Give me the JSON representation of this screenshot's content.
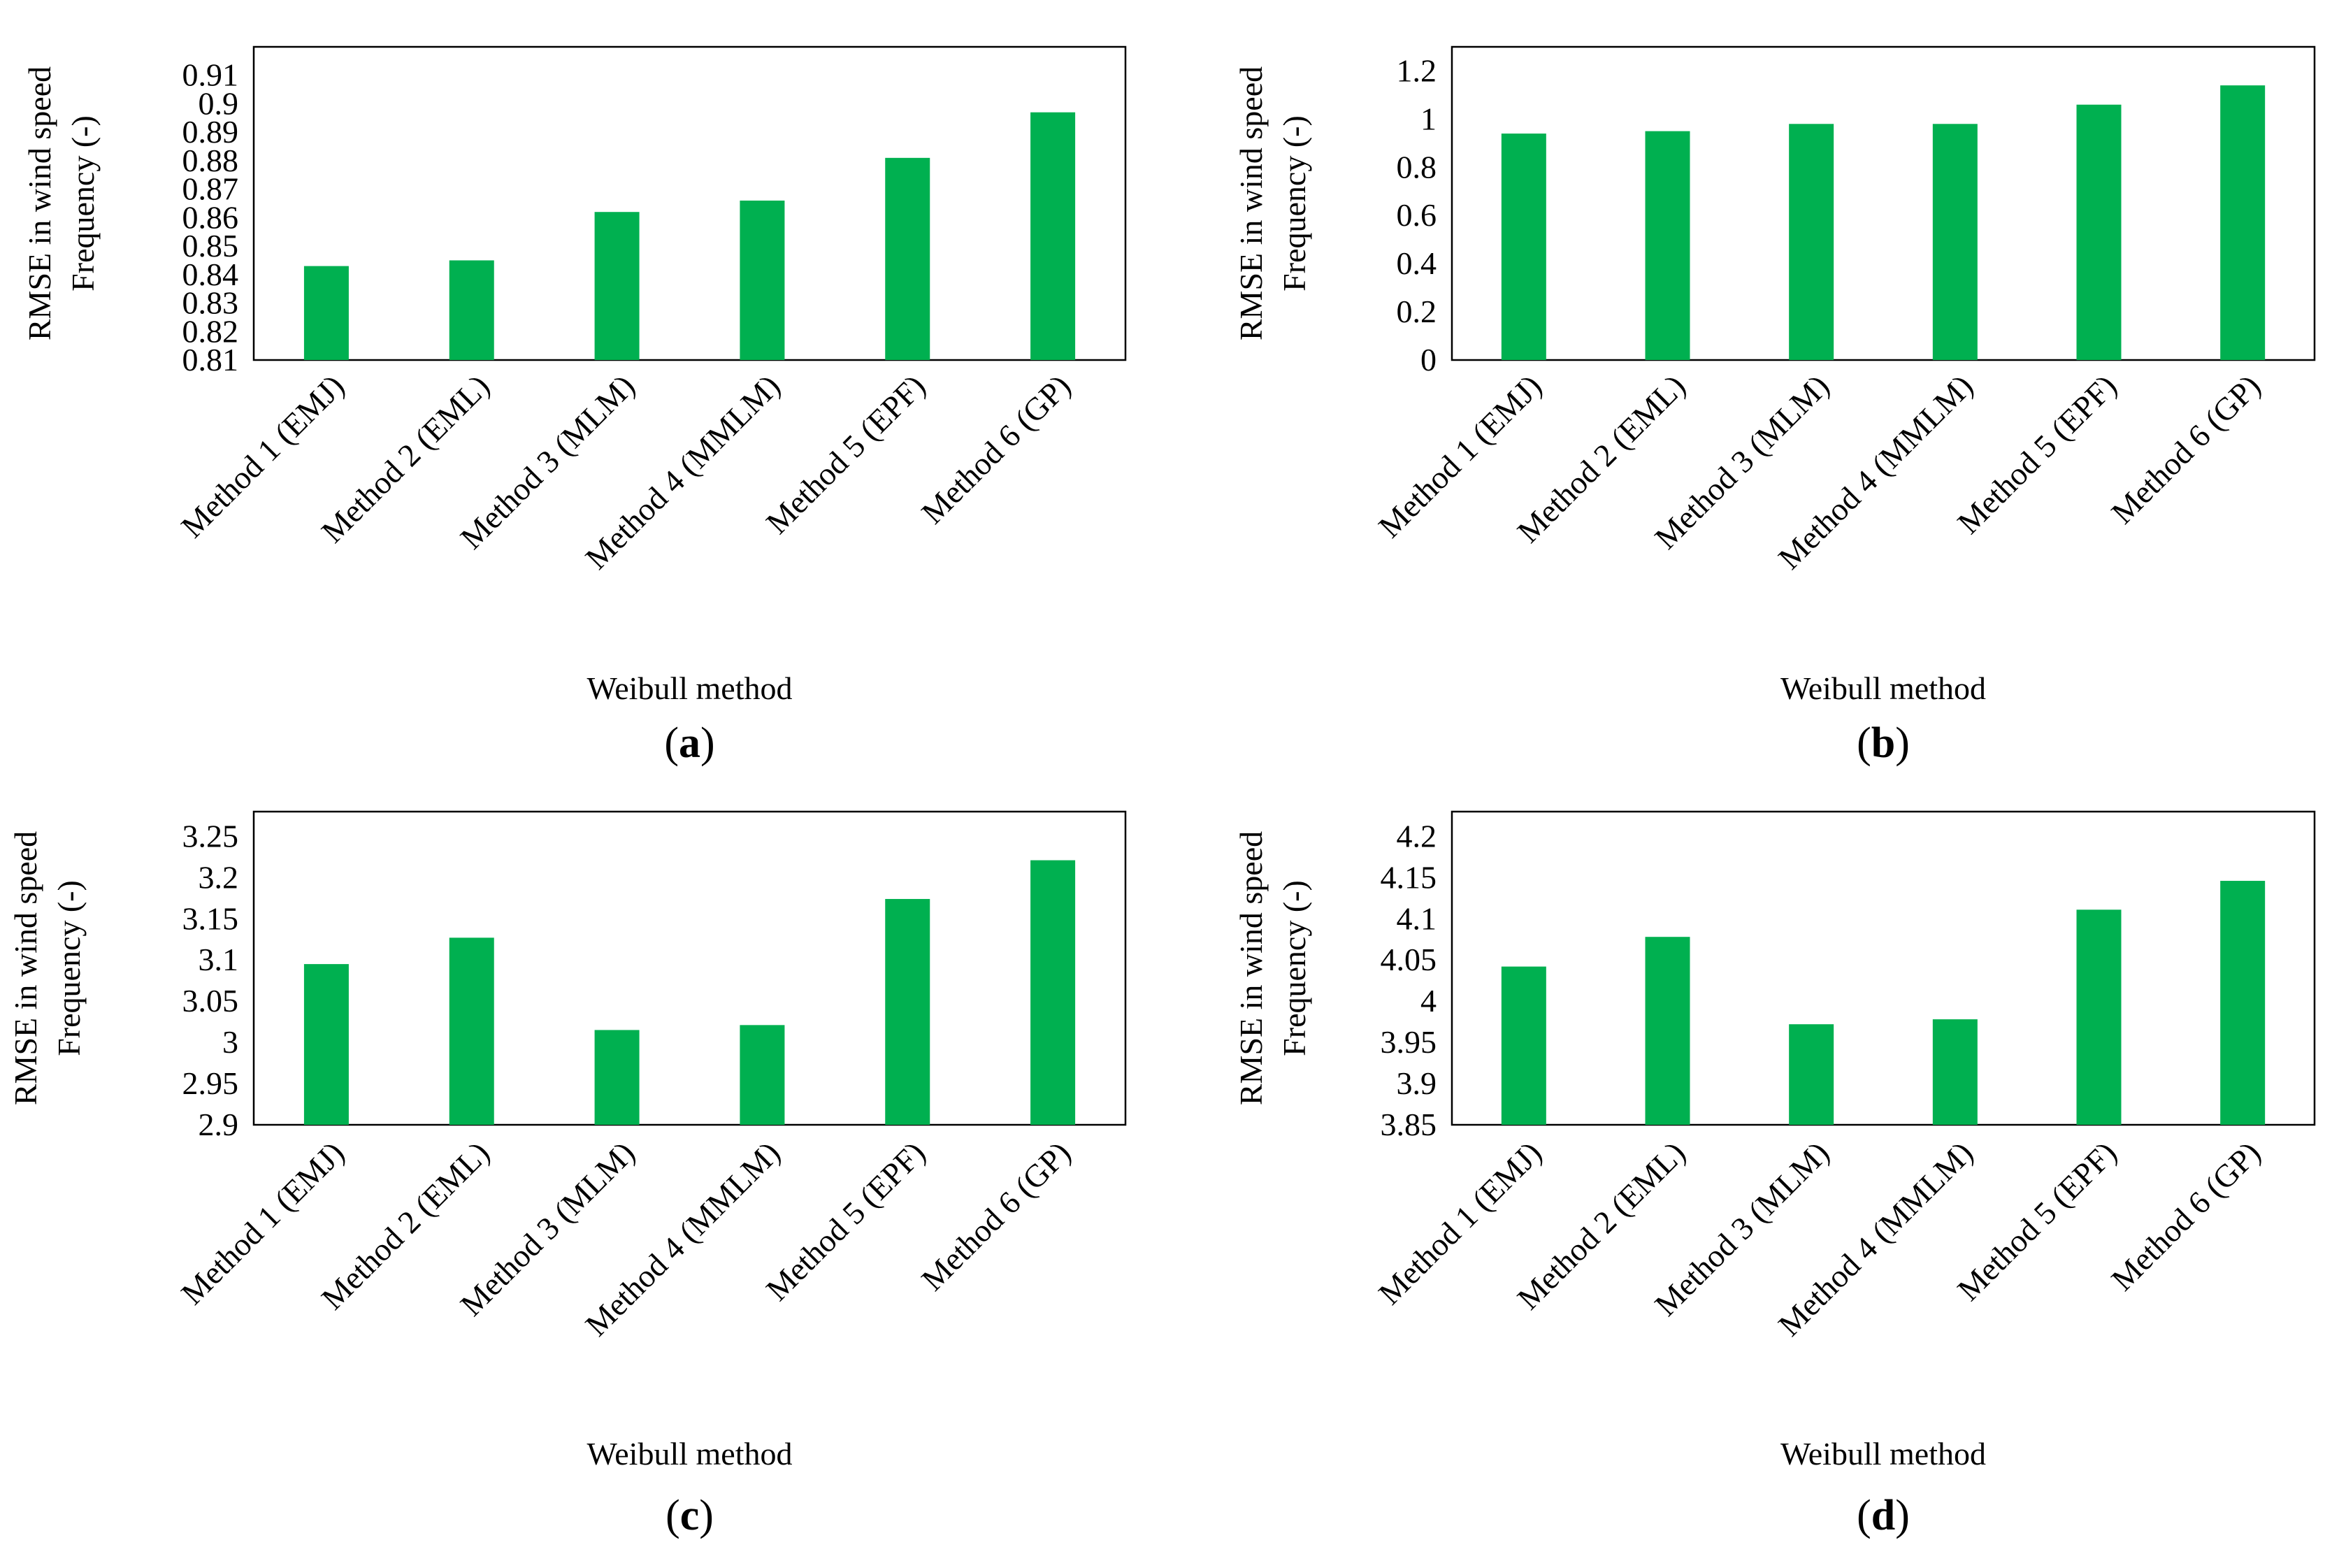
{
  "figure": {
    "bar_color": "#00b050"
  },
  "chart_data": [
    {
      "type": "bar",
      "panel_label": "(a)",
      "panel_letter": "a",
      "categories": [
        "Method 1 (EMJ)",
        "Method 2 (EML)",
        "Method 3 (MLM)",
        "Method 4 (MMLM)",
        "Method 5 (EPF)",
        "Method 6 (GP)"
      ],
      "values": [
        0.843,
        0.845,
        0.862,
        0.866,
        0.881,
        0.897
      ],
      "xlabel": "Weibull method",
      "ylabel_lines": [
        "RMSE in wind speed",
        "Frequency (-)"
      ],
      "ylim": [
        0.81,
        0.92
      ],
      "yticks": [
        0.81,
        0.82,
        0.83,
        0.84,
        0.85,
        0.86,
        0.87,
        0.88,
        0.89,
        0.9,
        0.91
      ],
      "ytick_labels": [
        "0.81",
        "0.82",
        "0.83",
        "0.84",
        "0.85",
        "0.86",
        "0.87",
        "0.88",
        "0.89",
        "0.9",
        "0.91"
      ],
      "grid": false
    },
    {
      "type": "bar",
      "panel_label": "(b)",
      "panel_letter": "b",
      "categories": [
        "Method 1 (EMJ)",
        "Method 2 (EML)",
        "Method 3 (MLM)",
        "Method 4 (MMLM)",
        "Method 5 (EPF)",
        "Method 6 (GP)"
      ],
      "values": [
        0.94,
        0.95,
        0.98,
        0.98,
        1.06,
        1.14
      ],
      "xlabel": "Weibull method",
      "ylabel_lines": [
        "RMSE in wind speed",
        "Frequency (-)"
      ],
      "ylim": [
        0,
        1.3
      ],
      "yticks": [
        0,
        0.2,
        0.4,
        0.6,
        0.8,
        1,
        1.2
      ],
      "ytick_labels": [
        "0",
        "0.2",
        "0.4",
        "0.6",
        "0.8",
        "1",
        "1.2"
      ],
      "grid": false
    },
    {
      "type": "bar",
      "panel_label": "(c)",
      "panel_letter": "c",
      "categories": [
        "Method 1 (EMJ)",
        "Method 2 (EML)",
        "Method 3 (MLM)",
        "Method 4 (MMLM)",
        "Method 5 (EPF)",
        "Method 6 (GP)"
      ],
      "values": [
        3.095,
        3.127,
        3.015,
        3.021,
        3.174,
        3.221
      ],
      "xlabel": "Weibull method",
      "ylabel_lines": [
        "RMSE in wind speed",
        "Frequency (-)"
      ],
      "ylim": [
        2.9,
        3.28
      ],
      "yticks": [
        2.9,
        2.95,
        3,
        3.05,
        3.1,
        3.15,
        3.2,
        3.25
      ],
      "ytick_labels": [
        "2.9",
        "2.95",
        "3",
        "3.05",
        "3.1",
        "3.15",
        "3.2",
        "3.25"
      ],
      "grid": false
    },
    {
      "type": "bar",
      "panel_label": "(d)",
      "panel_letter": "d",
      "categories": [
        "Method 1 (EMJ)",
        "Method 2 (EML)",
        "Method 3 (MLM)",
        "Method 4 (MMLM)",
        "Method 5 (EPF)",
        "Method 6 (GP)"
      ],
      "values": [
        4.042,
        4.078,
        3.972,
        3.978,
        4.111,
        4.146
      ],
      "xlabel": "Weibull method",
      "ylabel_lines": [
        "RMSE in wind speed",
        "Frequency (-)"
      ],
      "ylim": [
        3.85,
        4.23
      ],
      "yticks": [
        3.85,
        3.9,
        3.95,
        4,
        4.05,
        4.1,
        4.15,
        4.2
      ],
      "ytick_labels": [
        "3.85",
        "3.9",
        "3.95",
        "4",
        "4.05",
        "4.1",
        "4.15",
        "4.2"
      ],
      "grid": false
    }
  ]
}
